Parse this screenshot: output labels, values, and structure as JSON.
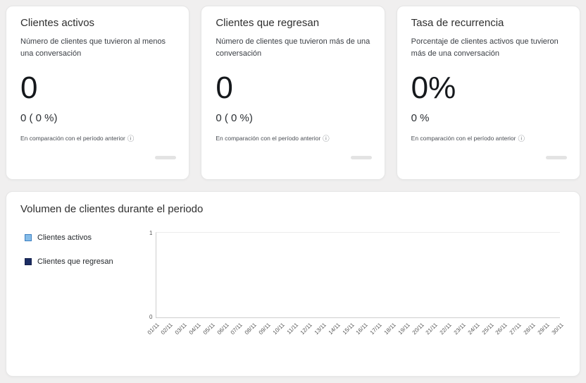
{
  "cards": [
    {
      "title": "Clientes activos",
      "description": "Número de clientes que tuvieron al menos una conversación",
      "value": "0",
      "comparison_value": "0 ( 0 %)",
      "comparison_label": "En comparación con el período anterior",
      "info_icon": "ⓘ"
    },
    {
      "title": "Clientes que regresan",
      "description": "Número de clientes que tuvieron más de una conversación",
      "value": "0",
      "comparison_value": "0 ( 0 %)",
      "comparison_label": "En comparación con el período anterior",
      "info_icon": "ⓘ"
    },
    {
      "title": "Tasa de recurrencia",
      "description": "Porcentaje de clientes activos que tuvieron más de una conversación",
      "value": "0%",
      "comparison_value": "0 %",
      "comparison_label": "En comparación con el período anterior",
      "info_icon": "ⓘ"
    }
  ],
  "chart_card": {
    "title": "Volumen de clientes durante el periodo"
  },
  "chart_data": {
    "type": "line",
    "title": "Volumen de clientes durante el periodo",
    "x": [
      "01/11",
      "02/11",
      "03/11",
      "04/11",
      "05/11",
      "06/11",
      "07/11",
      "08/11",
      "09/11",
      "10/11",
      "11/11",
      "12/11",
      "13/11",
      "14/11",
      "15/11",
      "16/11",
      "17/11",
      "18/11",
      "19/11",
      "20/11",
      "21/11",
      "22/11",
      "23/11",
      "24/11",
      "25/11",
      "26/11",
      "27/11",
      "28/11",
      "29/11",
      "30/11"
    ],
    "series": [
      {
        "name": "Clientes activos",
        "color": "#85bce8",
        "border": "#3d7fc1",
        "values": []
      },
      {
        "name": "Clientes que regresan",
        "color": "#1b2d63",
        "border": "#14204a",
        "values": []
      }
    ],
    "ylim": [
      0,
      1
    ],
    "y_ticks": [
      "0",
      "1"
    ],
    "legend_position": "left",
    "grid": false
  }
}
